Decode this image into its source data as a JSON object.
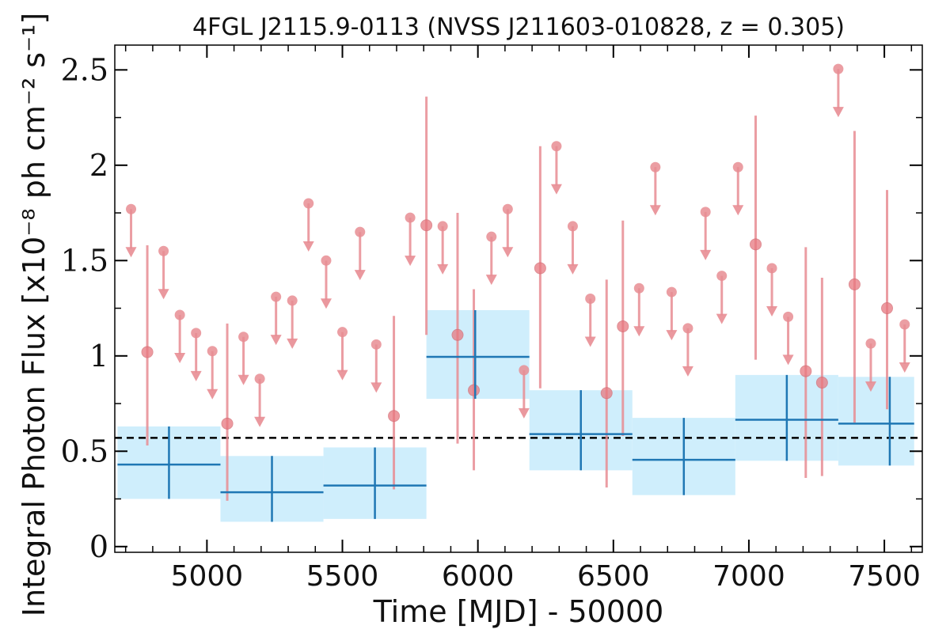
{
  "chart_data": {
    "type": "scatter",
    "title": "4FGL J2115.9-0113 (NVSS J211603-010828, z = 0.305)",
    "xlabel": "Time [MJD] - 50000",
    "ylabel": "Integral Photon Flux [x10⁻⁸ ph cm⁻² s⁻¹]",
    "xlim": [
      4660,
      7640
    ],
    "ylim": [
      -0.03,
      2.63
    ],
    "xticks": [
      5000,
      5500,
      6000,
      6500,
      7000,
      7500
    ],
    "xtick_labels": [
      "5000",
      "5500",
      "6000",
      "6500",
      "7000",
      "7500"
    ],
    "yticks": [
      0,
      0.5,
      1,
      1.5,
      2,
      2.5
    ],
    "ytick_labels": [
      "0",
      "0.5",
      "1",
      "1.5",
      "2",
      "2.5"
    ],
    "mean_flux": 0.57,
    "colors": {
      "short_bins": "#e88d93",
      "long_bins": "#1f77b4",
      "long_band": "#cfeefc",
      "mean_line": "#000000"
    },
    "short_bins_detections": [
      {
        "x": 4780,
        "y": 1.02,
        "ylo": 0.53,
        "yhi": 1.58
      },
      {
        "x": 5075,
        "y": 0.645,
        "ylo": 0.24,
        "yhi": 1.17
      },
      {
        "x": 5690,
        "y": 0.685,
        "ylo": 0.3,
        "yhi": 1.21
      },
      {
        "x": 5810,
        "y": 1.685,
        "ylo": 1.11,
        "yhi": 2.36
      },
      {
        "x": 5925,
        "y": 1.11,
        "ylo": 0.54,
        "yhi": 1.75
      },
      {
        "x": 5985,
        "y": 0.82,
        "ylo": 0.4,
        "yhi": 1.35
      },
      {
        "x": 6230,
        "y": 1.46,
        "ylo": 0.83,
        "yhi": 2.1
      },
      {
        "x": 6475,
        "y": 0.805,
        "ylo": 0.31,
        "yhi": 1.4
      },
      {
        "x": 6535,
        "y": 1.155,
        "ylo": 0.58,
        "yhi": 1.71
      },
      {
        "x": 7025,
        "y": 1.585,
        "ylo": 0.98,
        "yhi": 2.26
      },
      {
        "x": 7210,
        "y": 0.92,
        "ylo": 0.36,
        "yhi": 1.57
      },
      {
        "x": 7270,
        "y": 0.86,
        "ylo": 0.37,
        "yhi": 1.41
      },
      {
        "x": 7390,
        "y": 1.375,
        "ylo": 0.65,
        "yhi": 2.18
      },
      {
        "x": 7510,
        "y": 1.25,
        "ylo": 0.72,
        "yhi": 1.87
      }
    ],
    "short_bins_upper_limits": [
      {
        "x": 4720,
        "y": 1.77
      },
      {
        "x": 4840,
        "y": 1.55
      },
      {
        "x": 4900,
        "y": 1.215
      },
      {
        "x": 4960,
        "y": 1.12
      },
      {
        "x": 5020,
        "y": 1.025
      },
      {
        "x": 5135,
        "y": 1.1
      },
      {
        "x": 5195,
        "y": 0.88
      },
      {
        "x": 5255,
        "y": 1.31
      },
      {
        "x": 5315,
        "y": 1.29
      },
      {
        "x": 5375,
        "y": 1.8
      },
      {
        "x": 5440,
        "y": 1.5
      },
      {
        "x": 5500,
        "y": 1.125
      },
      {
        "x": 5565,
        "y": 1.65
      },
      {
        "x": 5625,
        "y": 1.06
      },
      {
        "x": 5750,
        "y": 1.725
      },
      {
        "x": 5870,
        "y": 1.68
      },
      {
        "x": 6050,
        "y": 1.625
      },
      {
        "x": 6110,
        "y": 1.77
      },
      {
        "x": 6170,
        "y": 0.925
      },
      {
        "x": 6290,
        "y": 2.1
      },
      {
        "x": 6350,
        "y": 1.68
      },
      {
        "x": 6415,
        "y": 1.3
      },
      {
        "x": 6595,
        "y": 1.355
      },
      {
        "x": 6655,
        "y": 1.99
      },
      {
        "x": 6715,
        "y": 1.335
      },
      {
        "x": 6775,
        "y": 1.145
      },
      {
        "x": 6840,
        "y": 1.755
      },
      {
        "x": 6900,
        "y": 1.42
      },
      {
        "x": 6960,
        "y": 1.99
      },
      {
        "x": 7085,
        "y": 1.46
      },
      {
        "x": 7145,
        "y": 1.205
      },
      {
        "x": 7330,
        "y": 2.505
      },
      {
        "x": 7450,
        "y": 1.065
      },
      {
        "x": 7575,
        "y": 1.165
      }
    ],
    "long_bins": [
      {
        "x0": 4670,
        "x1": 5050,
        "x": 4860,
        "y": 0.43,
        "ylo": 0.25,
        "yhi": 0.63,
        "band_lo": 0.25,
        "band_hi": 0.63
      },
      {
        "x0": 5050,
        "x1": 5430,
        "x": 5240,
        "y": 0.285,
        "ylo": 0.13,
        "yhi": 0.475,
        "band_lo": 0.13,
        "band_hi": 0.475
      },
      {
        "x0": 5430,
        "x1": 5810,
        "x": 5620,
        "y": 0.32,
        "ylo": 0.145,
        "yhi": 0.52,
        "band_lo": 0.145,
        "band_hi": 0.52
      },
      {
        "x0": 5810,
        "x1": 6190,
        "x": 5990,
        "y": 0.995,
        "ylo": 0.775,
        "yhi": 1.24,
        "band_lo": 0.775,
        "band_hi": 1.24
      },
      {
        "x0": 6190,
        "x1": 6570,
        "x": 6380,
        "y": 0.59,
        "ylo": 0.4,
        "yhi": 0.82,
        "band_lo": 0.4,
        "band_hi": 0.82
      },
      {
        "x0": 6570,
        "x1": 6950,
        "x": 6760,
        "y": 0.455,
        "ylo": 0.27,
        "yhi": 0.675,
        "band_lo": 0.27,
        "band_hi": 0.675
      },
      {
        "x0": 6950,
        "x1": 7330,
        "x": 7140,
        "y": 0.665,
        "ylo": 0.45,
        "yhi": 0.9,
        "band_lo": 0.45,
        "band_hi": 0.9
      },
      {
        "x0": 7330,
        "x1": 7710,
        "x": 7520,
        "y": 0.645,
        "ylo": 0.425,
        "yhi": 0.89,
        "band_lo": 0.425,
        "band_hi": 0.89
      }
    ]
  }
}
